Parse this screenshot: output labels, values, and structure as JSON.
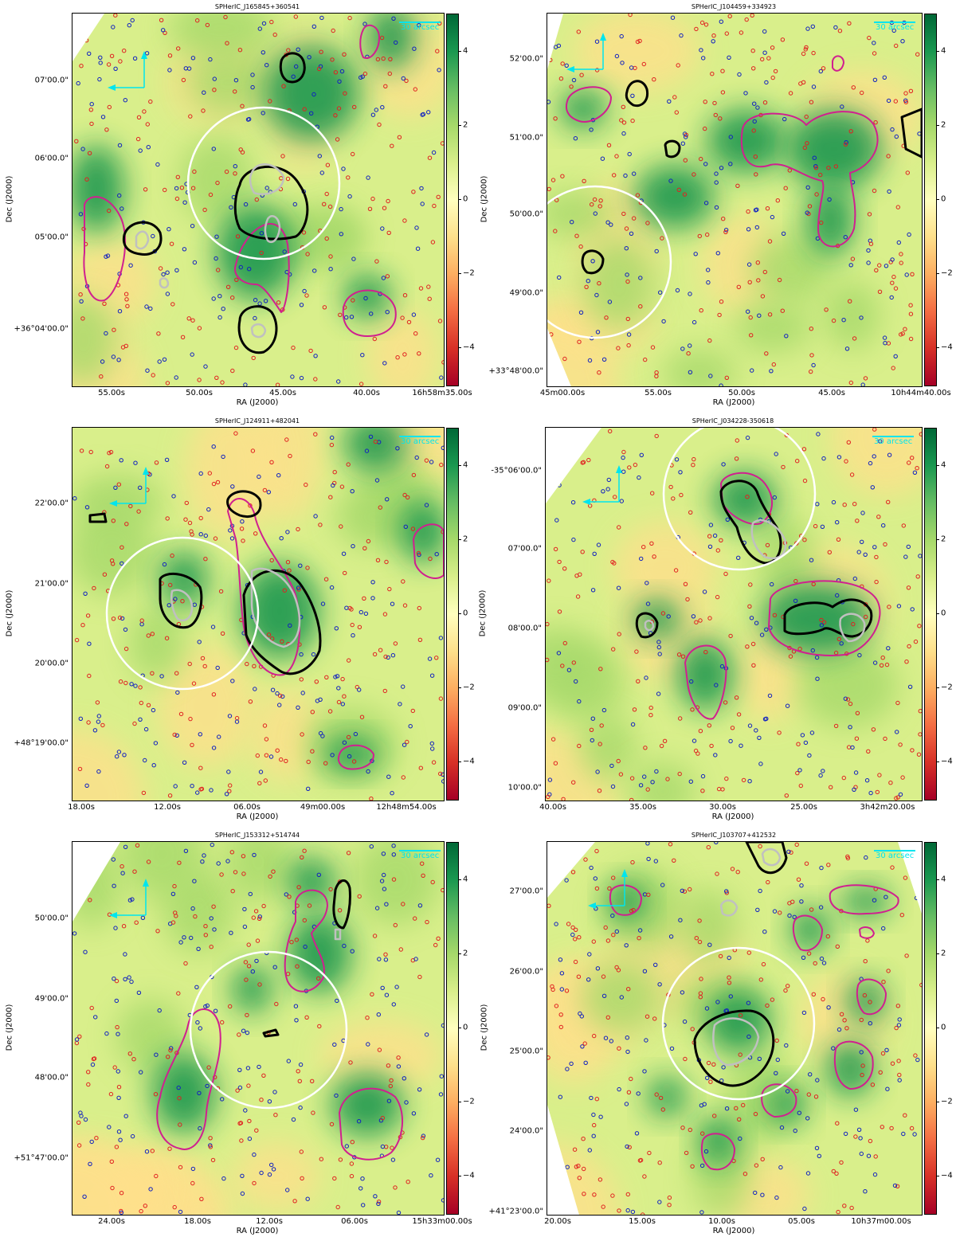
{
  "colors": {
    "background_cmap": [
      "#a50026",
      "#d73027",
      "#f46d43",
      "#fdae61",
      "#fee08b",
      "#ffffbf",
      "#d9ef8b",
      "#a6d96a",
      "#66bd63",
      "#1a9850",
      "#006837"
    ],
    "contour_black": "#000000",
    "contour_gray": "#c0c0c0",
    "contour_magenta": "#d0208f",
    "circle": "#ffffff",
    "source_red": "#e02020",
    "source_blue": "#1020c0",
    "compass": "#00e5ee"
  },
  "scale_bar_label": "30 arcsec",
  "chart_data": [
    {
      "type": "heatmap",
      "title": "SPHerIC_J165845+360541",
      "xlabel": "RA (J2000)",
      "ylabel": "Dec (J2000)",
      "xticks": [
        "55.00s",
        "50.00s",
        "45.00s",
        "40.00s",
        "16h58m35.00s"
      ],
      "yticks": [
        "07'00.0\"",
        "06'00.0\"",
        "05'00.0\"",
        "+36°04'00.0\""
      ],
      "colorbar_ticks": [
        "4",
        "2",
        "0",
        "−2",
        "−4"
      ],
      "colorbar_range": [
        -5,
        5
      ]
    },
    {
      "type": "heatmap",
      "title": "SPHerIC_J104459+334923",
      "xlabel": "RA (J2000)",
      "ylabel": "Dec (J2000)",
      "xticks": [
        "45m00.00s",
        "55.00s",
        "50.00s",
        "45.00s",
        "10h44m40.00s"
      ],
      "yticks": [
        "52'00.0\"",
        "51'00.0\"",
        "50'00.0\"",
        "49'00.0\"",
        "+33°48'00.0\""
      ],
      "colorbar_ticks": [
        "4",
        "2",
        "0",
        "−2",
        "−4"
      ],
      "colorbar_range": [
        -5,
        5
      ]
    },
    {
      "type": "heatmap",
      "title": "SPHerIC_J124911+482041",
      "xlabel": "RA (J2000)",
      "ylabel": "Dec (J2000)",
      "xticks": [
        "18.00s",
        "12.00s",
        "06.00s",
        "49m00.00s",
        "12h48m54.00s"
      ],
      "yticks": [
        "22'00.0\"",
        "21'00.0\"",
        "20'00.0\"",
        "+48°19'00.0\""
      ],
      "colorbar_ticks": [
        "4",
        "2",
        "0",
        "−2",
        "−4"
      ],
      "colorbar_range": [
        -5,
        5
      ]
    },
    {
      "type": "heatmap",
      "title": "SPHerIC_J034228-350618",
      "xlabel": "RA (J2000)",
      "ylabel": "Dec (J2000)",
      "xticks": [
        "40.00s",
        "35.00s",
        "30.00s",
        "25.00s",
        "3h42m20.00s"
      ],
      "yticks": [
        "-35°06'00.0\"",
        "07'00.0\"",
        "08'00.0\"",
        "09'00.0\"",
        "10'00.0\""
      ],
      "colorbar_ticks": [
        "4",
        "2",
        "0",
        "−2",
        "−4"
      ],
      "colorbar_range": [
        -5,
        5
      ]
    },
    {
      "type": "heatmap",
      "title": "SPHerIC_J153312+514744",
      "xlabel": "RA (J2000)",
      "ylabel": "Dec (J2000)",
      "xticks": [
        "24.00s",
        "18.00s",
        "12.00s",
        "06.00s",
        "15h33m00.00s"
      ],
      "yticks": [
        "50'00.0\"",
        "49'00.0\"",
        "48'00.0\"",
        "+51°47'00.0\""
      ],
      "colorbar_ticks": [
        "4",
        "2",
        "0",
        "−2",
        "−4"
      ],
      "colorbar_range": [
        -5,
        5
      ]
    },
    {
      "type": "heatmap",
      "title": "SPHerIC_J103707+412532",
      "xlabel": "RA (J2000)",
      "ylabel": "Dec (J2000)",
      "xticks": [
        "20.00s",
        "15.00s",
        "10.00s",
        "05.00s",
        "10h37m00.00s"
      ],
      "yticks": [
        "27'00.0\"",
        "26'00.0\"",
        "25'00.0\"",
        "24'00.0\"",
        "+41°23'00.0\""
      ],
      "colorbar_ticks": [
        "4",
        "2",
        "0",
        "−2",
        "−4"
      ],
      "colorbar_range": [
        -5,
        5
      ]
    }
  ]
}
